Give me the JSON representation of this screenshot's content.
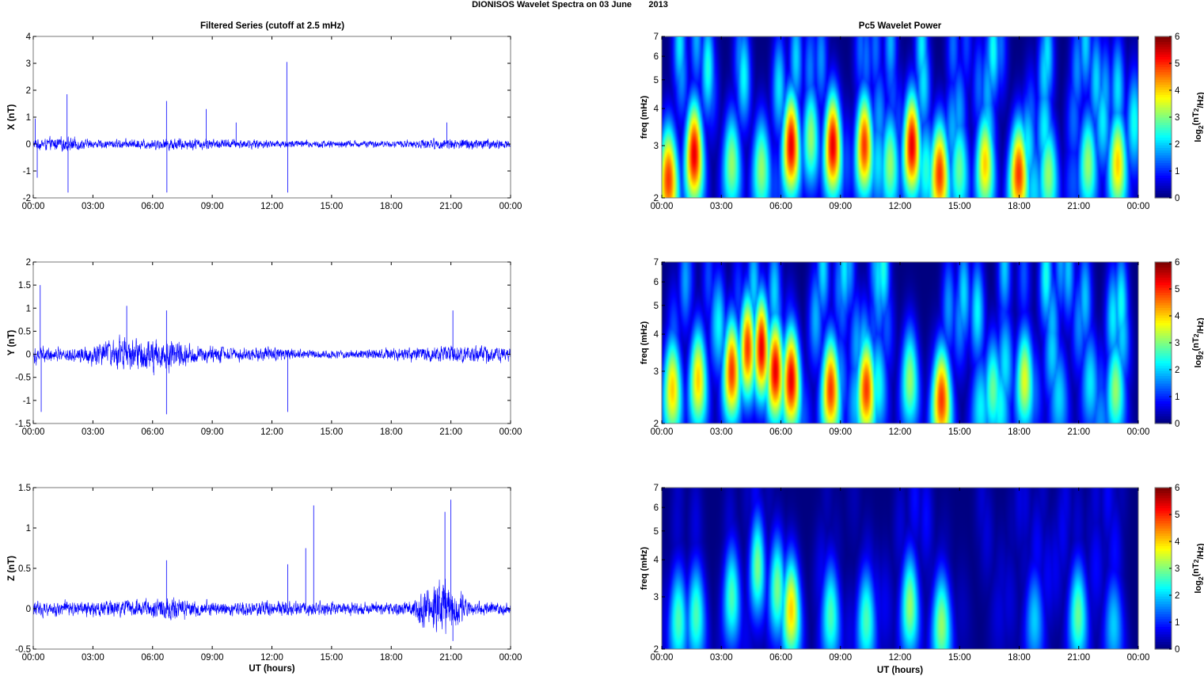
{
  "figure": {
    "title": "DIONISOS Wavelet Spectra on 03 June       2013",
    "left_title": "Filtered Series (cutoff at 2.5 mHz)",
    "right_title": "Pc5 Wavelet Power",
    "xlabel": "UT (hours)",
    "time_ticks": [
      "00:00",
      "03:00",
      "06:00",
      "09:00",
      "12:00",
      "15:00",
      "18:00",
      "21:00",
      "00:00"
    ]
  },
  "colorbar": {
    "label_parts": [
      "log",
      "2",
      "(nT",
      "2",
      "/Hz)"
    ],
    "ticks": [
      0,
      1,
      2,
      3,
      4,
      5,
      6
    ],
    "colormap": "jet",
    "range": [
      0,
      6
    ]
  },
  "chart_data": [
    {
      "type": "line",
      "component": "X",
      "ylabel": "X (nT)",
      "ylim": [
        -2,
        4
      ],
      "yticks": [
        -2,
        -1,
        0,
        1,
        2,
        3,
        4
      ],
      "color": "#0000ff",
      "x_unit": "UT hours",
      "x_range": [
        0,
        24
      ],
      "noise_profile": {
        "hours": [
          0,
          1.8,
          3,
          6,
          7,
          9,
          12,
          15,
          18,
          20,
          22,
          24
        ],
        "amp": [
          0.25,
          0.35,
          0.2,
          0.25,
          0.3,
          0.25,
          0.2,
          0.18,
          0.15,
          0.25,
          0.28,
          0.2
        ]
      },
      "spikes": [
        {
          "t": 0.1,
          "v": 0.95
        },
        {
          "t": 0.2,
          "v": -1.25
        },
        {
          "t": 1.7,
          "v": 1.85
        },
        {
          "t": 1.75,
          "v": -1.8
        },
        {
          "t": 6.7,
          "v": 1.6
        },
        {
          "t": 6.72,
          "v": -1.8
        },
        {
          "t": 8.7,
          "v": 1.3
        },
        {
          "t": 12.75,
          "v": 3.05
        },
        {
          "t": 12.8,
          "v": -1.8
        },
        {
          "t": 10.2,
          "v": 0.8
        },
        {
          "t": 20.8,
          "v": 0.8
        }
      ]
    },
    {
      "type": "line",
      "component": "Y",
      "ylabel": "Y (nT)",
      "ylim": [
        -1.5,
        2
      ],
      "yticks": [
        -1.5,
        -1,
        -0.5,
        0,
        0.5,
        1,
        1.5,
        2
      ],
      "color": "#0000ff",
      "x_unit": "UT hours",
      "x_range": [
        0,
        24
      ],
      "noise_profile": {
        "hours": [
          0,
          2,
          3,
          5,
          7,
          8,
          10,
          12,
          14,
          16,
          18,
          20,
          22,
          24
        ],
        "amp": [
          0.25,
          0.2,
          0.3,
          0.5,
          0.45,
          0.25,
          0.2,
          0.2,
          0.12,
          0.12,
          0.18,
          0.22,
          0.25,
          0.2
        ]
      },
      "spikes": [
        {
          "t": 0.35,
          "v": 1.5
        },
        {
          "t": 0.4,
          "v": -1.25
        },
        {
          "t": 4.7,
          "v": 1.05
        },
        {
          "t": 6.7,
          "v": 0.95
        },
        {
          "t": 6.7,
          "v": -1.3
        },
        {
          "t": 12.8,
          "v": -1.25
        },
        {
          "t": 21.1,
          "v": 0.95
        }
      ]
    },
    {
      "type": "line",
      "component": "Z",
      "ylabel": "Z (nT)",
      "ylim": [
        -0.5,
        1.5
      ],
      "yticks": [
        -0.5,
        0,
        0.5,
        1,
        1.5
      ],
      "xlabel": "UT (hours)",
      "color": "#0000ff",
      "x_unit": "UT hours",
      "x_range": [
        0,
        24
      ],
      "noise_profile": {
        "hours": [
          0,
          3,
          6,
          7,
          9,
          12,
          14,
          16,
          19,
          19.5,
          20.5,
          21,
          22,
          24
        ],
        "amp": [
          0.12,
          0.12,
          0.15,
          0.2,
          0.12,
          0.12,
          0.12,
          0.1,
          0.12,
          0.3,
          0.45,
          0.4,
          0.12,
          0.1
        ]
      },
      "spikes": [
        {
          "t": 6.7,
          "v": 0.6
        },
        {
          "t": 12.8,
          "v": 0.55
        },
        {
          "t": 13.7,
          "v": 0.75
        },
        {
          "t": 14.1,
          "v": 1.28
        },
        {
          "t": 20.7,
          "v": 1.2
        },
        {
          "t": 21.0,
          "v": 1.35
        },
        {
          "t": 21.1,
          "v": -0.4
        }
      ]
    },
    {
      "type": "heatmap",
      "component": "X",
      "ylabel": "freq (mHz)",
      "yscale": "log",
      "ylim": [
        2,
        7
      ],
      "yticks": [
        2,
        3,
        4,
        5,
        6,
        7
      ],
      "x_unit": "UT hours",
      "x_range": [
        0,
        24
      ],
      "blobs": [
        {
          "t": 0.3,
          "f": 2.3,
          "p": 5.5
        },
        {
          "t": 1.6,
          "f": 2.8,
          "p": 6
        },
        {
          "t": 3.5,
          "f": 2.6,
          "p": 3.5
        },
        {
          "t": 5.0,
          "f": 2.5,
          "p": 3.5
        },
        {
          "t": 6.5,
          "f": 3.0,
          "p": 6
        },
        {
          "t": 7.5,
          "f": 3.2,
          "p": 3.5
        },
        {
          "t": 8.6,
          "f": 3.0,
          "p": 6
        },
        {
          "t": 10.2,
          "f": 3.0,
          "p": 5.5
        },
        {
          "t": 11.5,
          "f": 2.6,
          "p": 3.5
        },
        {
          "t": 12.6,
          "f": 3.0,
          "p": 6
        },
        {
          "t": 14.0,
          "f": 2.4,
          "p": 5.5
        },
        {
          "t": 15.0,
          "f": 2.5,
          "p": 3.2
        },
        {
          "t": 16.3,
          "f": 2.6,
          "p": 4.5
        },
        {
          "t": 18.0,
          "f": 2.4,
          "p": 5.5
        },
        {
          "t": 19.5,
          "f": 2.4,
          "p": 3.5
        },
        {
          "t": 21.5,
          "f": 2.6,
          "p": 3.5
        },
        {
          "t": 23.0,
          "f": 2.6,
          "p": 4.5
        }
      ]
    },
    {
      "type": "heatmap",
      "component": "Y",
      "ylabel": "freq (mHz)",
      "yscale": "log",
      "ylim": [
        2,
        7
      ],
      "yticks": [
        2,
        3,
        4,
        5,
        6,
        7
      ],
      "x_unit": "UT hours",
      "x_range": [
        0,
        24
      ],
      "blobs": [
        {
          "t": 0.5,
          "f": 2.6,
          "p": 4.5
        },
        {
          "t": 1.8,
          "f": 2.8,
          "p": 4.5
        },
        {
          "t": 3.5,
          "f": 3.0,
          "p": 5.5
        },
        {
          "t": 4.3,
          "f": 3.6,
          "p": 5.5
        },
        {
          "t": 5.0,
          "f": 3.6,
          "p": 6
        },
        {
          "t": 5.7,
          "f": 3.0,
          "p": 6
        },
        {
          "t": 6.5,
          "f": 2.8,
          "p": 6
        },
        {
          "t": 8.5,
          "f": 2.6,
          "p": 5.5
        },
        {
          "t": 10.3,
          "f": 2.6,
          "p": 5.5
        },
        {
          "t": 12.5,
          "f": 2.8,
          "p": 3.5
        },
        {
          "t": 14.1,
          "f": 2.4,
          "p": 5.5
        },
        {
          "t": 16.7,
          "f": 2.6,
          "p": 3.2
        },
        {
          "t": 18.3,
          "f": 2.8,
          "p": 4
        },
        {
          "t": 22.9,
          "f": 2.6,
          "p": 3.5
        }
      ]
    },
    {
      "type": "heatmap",
      "component": "Z",
      "ylabel": "freq (mHz)",
      "yscale": "log",
      "ylim": [
        2,
        7
      ],
      "yticks": [
        2,
        3,
        4,
        5,
        6,
        7
      ],
      "xlabel": "UT (hours)",
      "x_unit": "UT hours",
      "x_range": [
        0,
        24
      ],
      "blobs": [
        {
          "t": 0.8,
          "f": 2.5,
          "p": 3
        },
        {
          "t": 1.7,
          "f": 2.6,
          "p": 3
        },
        {
          "t": 3.5,
          "f": 3.0,
          "p": 3
        },
        {
          "t": 4.8,
          "f": 3.8,
          "p": 3.3
        },
        {
          "t": 5.8,
          "f": 3.2,
          "p": 3.3
        },
        {
          "t": 6.5,
          "f": 2.7,
          "p": 4.5
        },
        {
          "t": 8.5,
          "f": 2.6,
          "p": 3
        },
        {
          "t": 10.3,
          "f": 2.5,
          "p": 3
        },
        {
          "t": 12.5,
          "f": 2.8,
          "p": 3.5
        },
        {
          "t": 14.1,
          "f": 2.4,
          "p": 3.5
        },
        {
          "t": 18.8,
          "f": 2.5,
          "p": 2.2
        },
        {
          "t": 21.0,
          "f": 2.6,
          "p": 3.2
        },
        {
          "t": 22.8,
          "f": 2.4,
          "p": 2.2
        }
      ]
    }
  ]
}
